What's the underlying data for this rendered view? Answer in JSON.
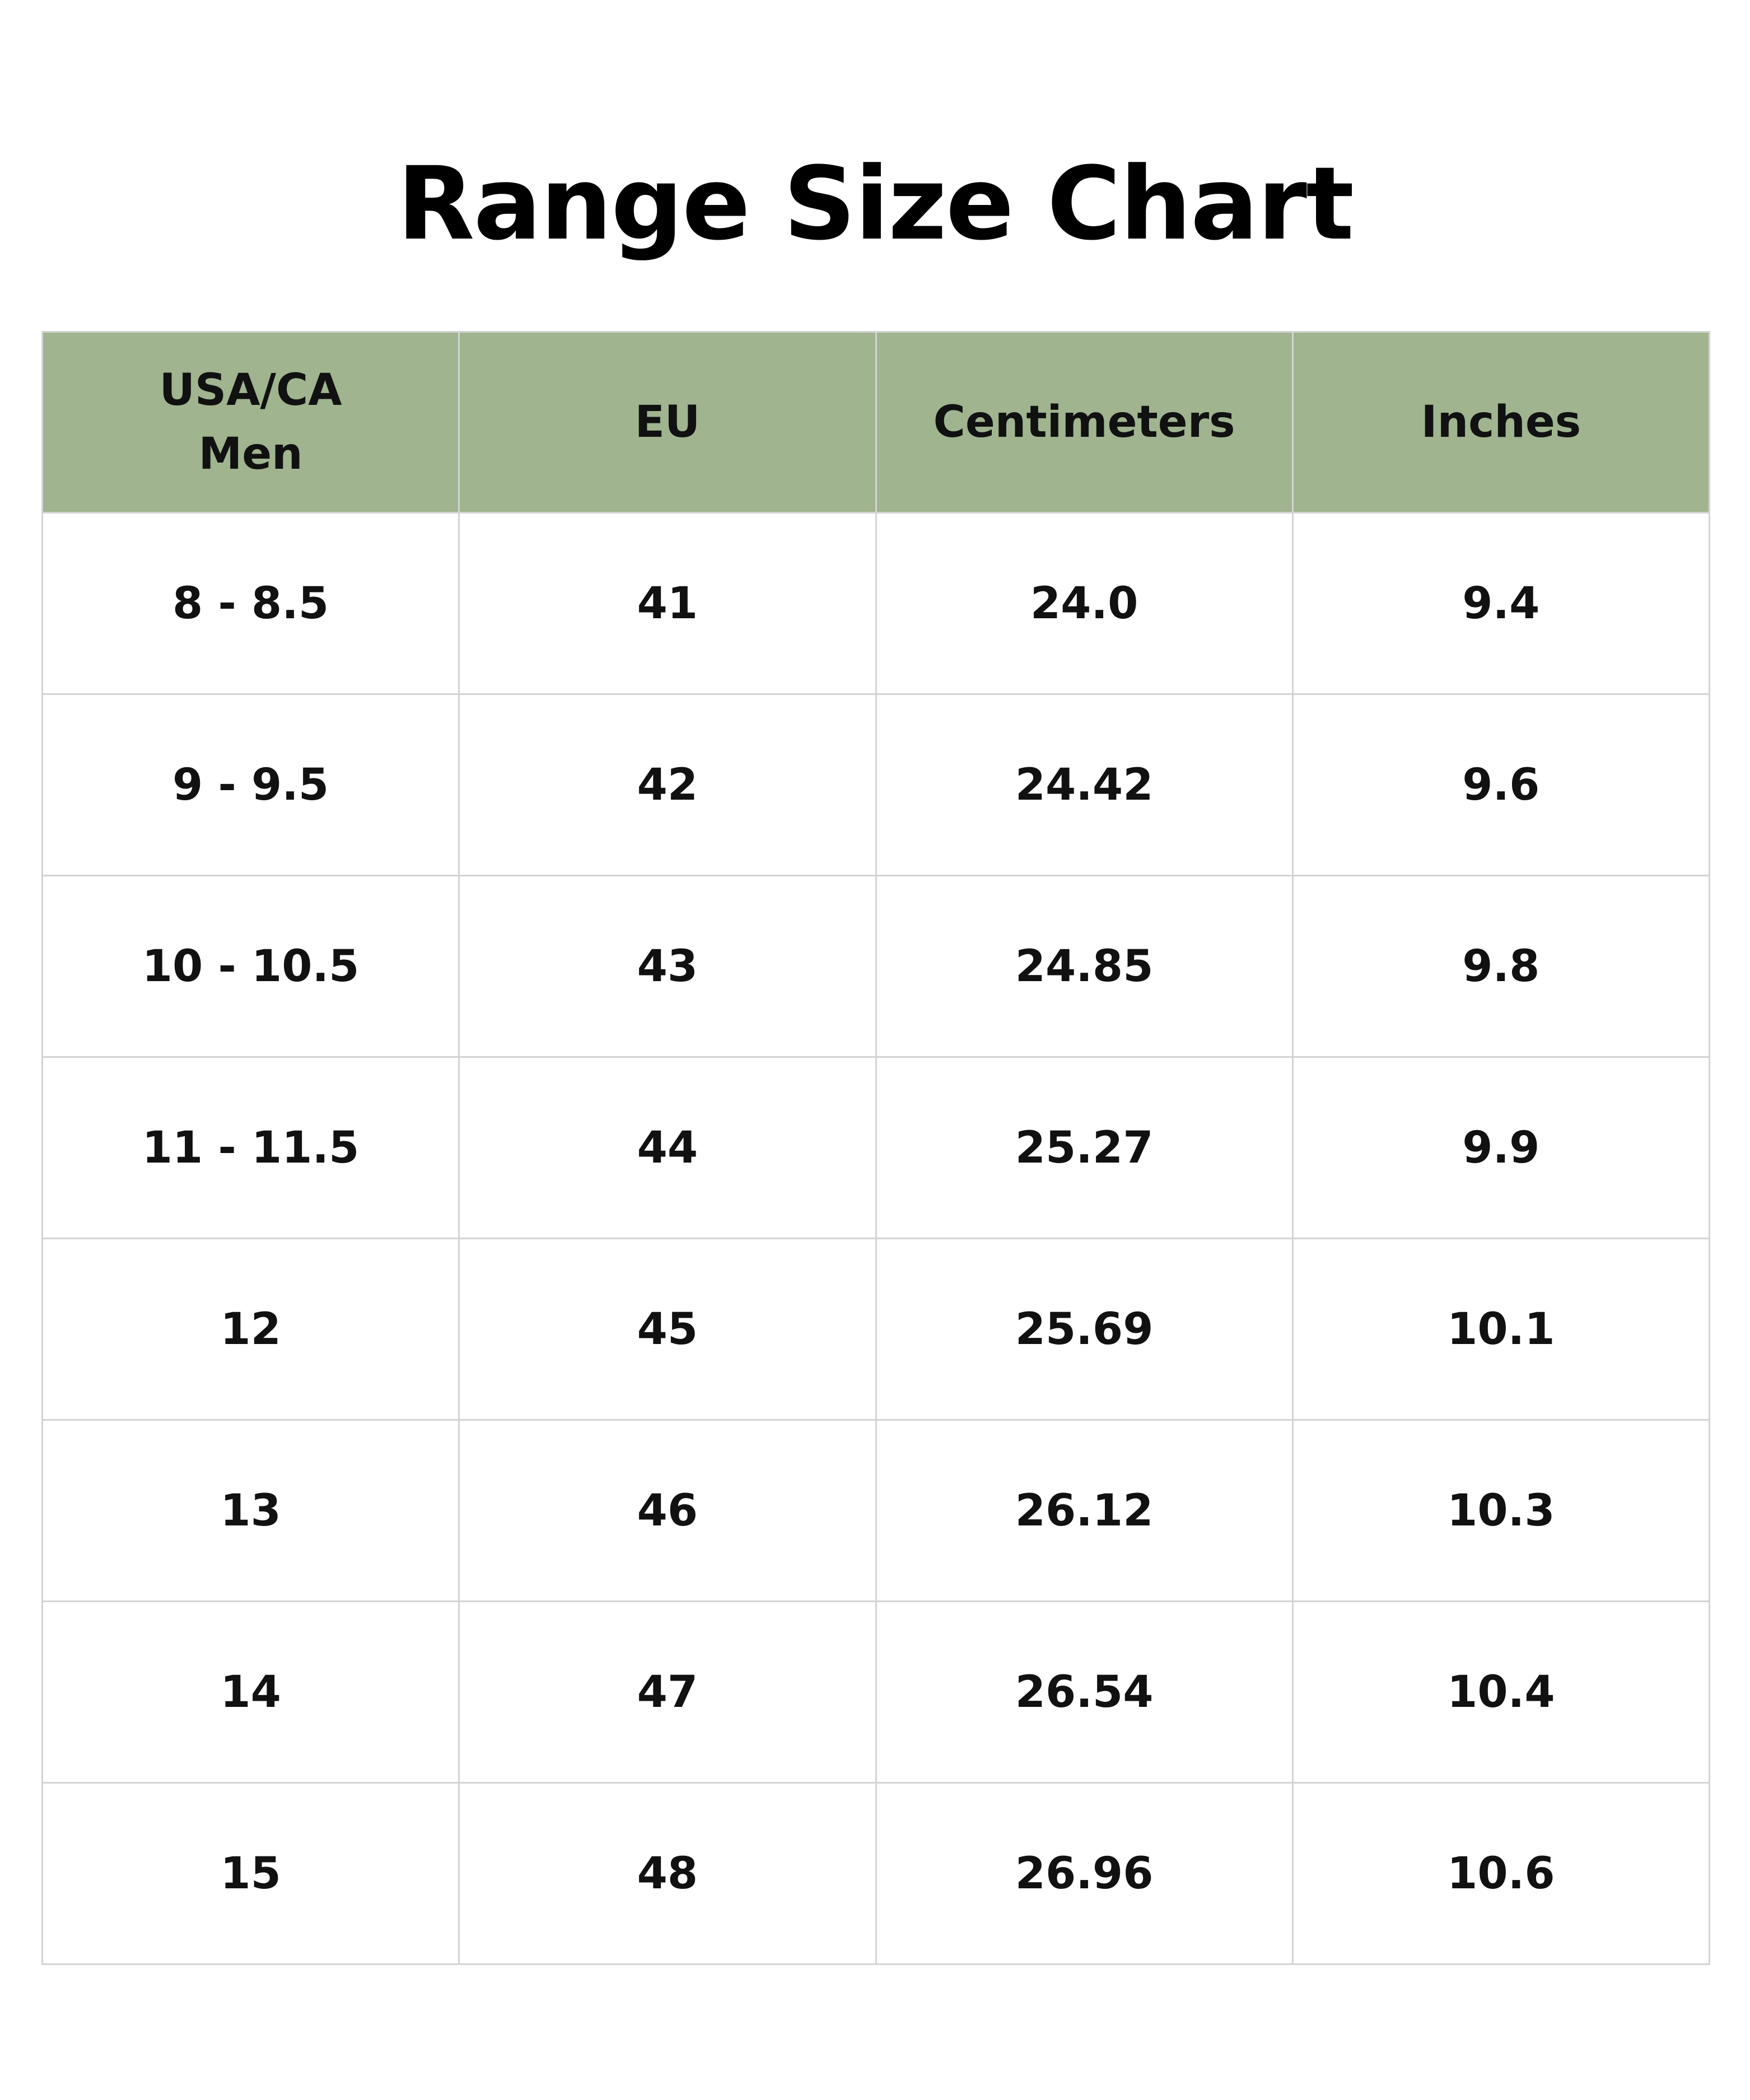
{
  "header": {
    "title": "Range Size Chart"
  },
  "table": {
    "columns": [
      "USA/CA\nMen",
      "EU",
      "Centimeters",
      "Inches"
    ],
    "rows": [
      [
        "8 - 8.5",
        "41",
        "24.0",
        "9.4"
      ],
      [
        "9 - 9.5",
        "42",
        "24.42",
        "9.6"
      ],
      [
        "10 - 10.5",
        "43",
        "24.85",
        "9.8"
      ],
      [
        "11 - 11.5",
        "44",
        "25.27",
        "9.9"
      ],
      [
        "12",
        "45",
        "25.69",
        "10.1"
      ],
      [
        "13",
        "46",
        "26.12",
        "10.3"
      ],
      [
        "14",
        "47",
        "26.54",
        "10.4"
      ],
      [
        "15",
        "48",
        "26.96",
        "10.6"
      ]
    ]
  }
}
